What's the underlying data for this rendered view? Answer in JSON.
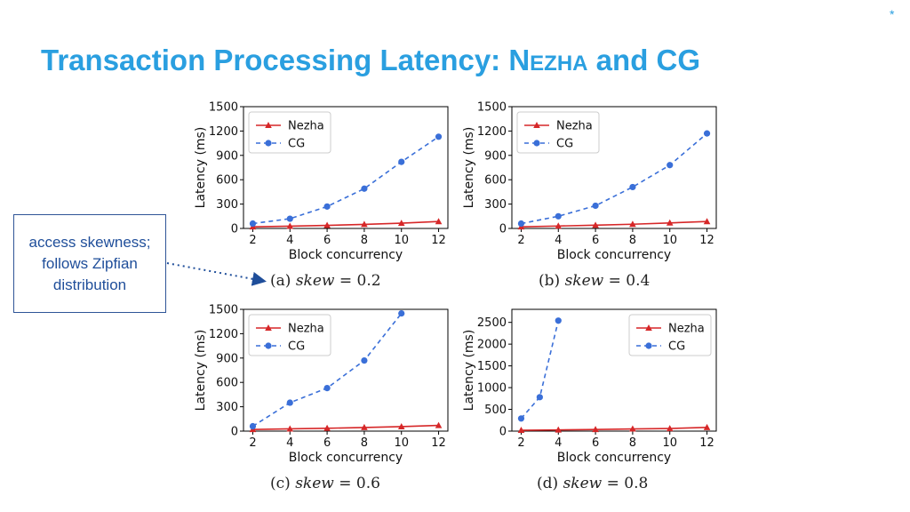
{
  "corner_mark": "*",
  "title": {
    "main": "Transaction Processing Latency: N",
    "smallcaps": "EZHA",
    "tail": " and CG"
  },
  "callout": {
    "text": "access skewness; follows Zipfian distribution"
  },
  "colors": {
    "accent": "#2a9fe0",
    "nezha": "#d62728",
    "cg": "#3a6fd8",
    "callout_border": "#2f5597"
  },
  "chart_data": [
    {
      "type": "line",
      "caption": {
        "label": "(a)",
        "var": "skew",
        "value": "= 0.2"
      },
      "xlabel": "Block concurrency",
      "ylabel": "Latency (ms)",
      "xticks": [
        2,
        4,
        6,
        8,
        10,
        12
      ],
      "yticks": [
        0,
        300,
        600,
        900,
        1200,
        1500
      ],
      "ylim": [
        0,
        1500
      ],
      "legend_position": "top-left",
      "series": [
        {
          "name": "Nezha",
          "x": [
            2,
            4,
            6,
            8,
            10,
            12
          ],
          "y": [
            20,
            28,
            38,
            50,
            65,
            85
          ]
        },
        {
          "name": "CG",
          "x": [
            2,
            4,
            6,
            8,
            10,
            12
          ],
          "y": [
            60,
            120,
            270,
            490,
            820,
            1130
          ]
        }
      ]
    },
    {
      "type": "line",
      "caption": {
        "label": "(b)",
        "var": "skew",
        "value": "= 0.4"
      },
      "xlabel": "Block concurrency",
      "ylabel": "Latency (ms)",
      "xticks": [
        2,
        4,
        6,
        8,
        10,
        12
      ],
      "yticks": [
        0,
        300,
        600,
        900,
        1200,
        1500
      ],
      "ylim": [
        0,
        1500
      ],
      "legend_position": "top-left",
      "series": [
        {
          "name": "Nezha",
          "x": [
            2,
            4,
            6,
            8,
            10,
            12
          ],
          "y": [
            20,
            30,
            40,
            52,
            68,
            85
          ]
        },
        {
          "name": "CG",
          "x": [
            2,
            4,
            6,
            8,
            10,
            12
          ],
          "y": [
            60,
            150,
            280,
            510,
            780,
            1170
          ]
        }
      ]
    },
    {
      "type": "line",
      "caption": {
        "label": "(c)",
        "var": "skew",
        "value": "= 0.6"
      },
      "xlabel": "Block concurrency",
      "ylabel": "Latency (ms)",
      "xticks": [
        2,
        4,
        6,
        8,
        10,
        12
      ],
      "yticks": [
        0,
        300,
        600,
        900,
        1200,
        1500
      ],
      "ylim": [
        0,
        1500
      ],
      "legend_position": "top-left",
      "series": [
        {
          "name": "Nezha",
          "x": [
            2,
            4,
            6,
            8,
            10,
            12
          ],
          "y": [
            20,
            28,
            35,
            45,
            55,
            70
          ]
        },
        {
          "name": "CG",
          "x": [
            2,
            4,
            6,
            8,
            10
          ],
          "y": [
            60,
            350,
            530,
            870,
            1450
          ]
        }
      ]
    },
    {
      "type": "line",
      "caption": {
        "label": "(d)",
        "var": "skew",
        "value": "= 0.8"
      },
      "xlabel": "Block concurrency",
      "ylabel": "Latency (ms)",
      "xticks": [
        2,
        4,
        6,
        8,
        10,
        12
      ],
      "yticks": [
        0,
        500,
        1000,
        1500,
        2000,
        2500
      ],
      "ylim": [
        0,
        2800
      ],
      "legend_position": "top-right",
      "series": [
        {
          "name": "Nezha",
          "x": [
            2,
            4,
            6,
            8,
            10,
            12
          ],
          "y": [
            20,
            28,
            38,
            50,
            60,
            85
          ]
        },
        {
          "name": "CG",
          "x": [
            2,
            3,
            4
          ],
          "y": [
            290,
            780,
            2540
          ]
        }
      ]
    }
  ]
}
